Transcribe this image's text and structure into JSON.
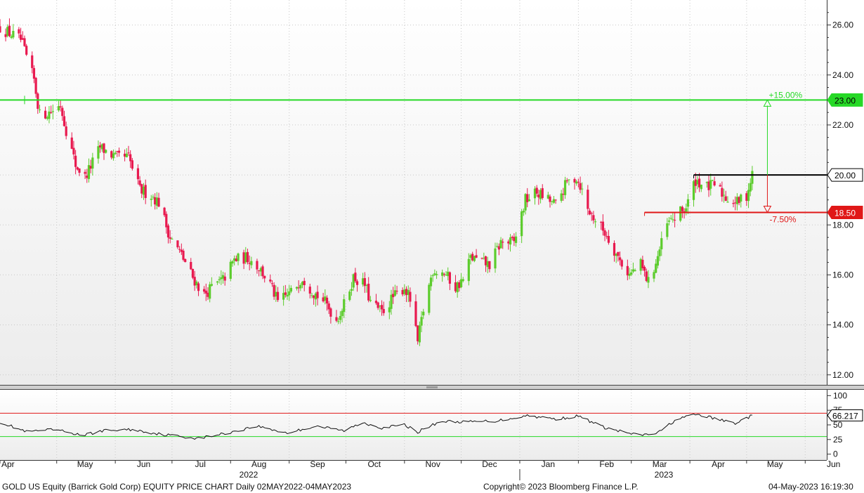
{
  "footer": {
    "left": "GOLD US Equity (Barrick Gold Corp) EQUITY PRICE CHART  Daily 02MAY2022-04MAY2023",
    "center": "Copyright© 2023 Bloomberg Finance L.P.",
    "right": "04-May-2023 16:19:30"
  },
  "colors": {
    "up": "#5ccc2c",
    "down": "#e8194f",
    "green_level": "#26d926",
    "red_level": "#e01818",
    "black_level": "#000000",
    "rsi_line": "#111111"
  },
  "chart_data": [
    {
      "type": "candlestick",
      "name": "price",
      "ylim": [
        11.6,
        27.0
      ],
      "yticks": [
        12,
        14,
        16,
        18,
        20,
        22,
        24,
        26
      ],
      "ytick_labels": [
        "12.00",
        "14.00",
        "16.00",
        "18.00",
        "20.00",
        "22.00",
        "24.00",
        "26.00"
      ],
      "x_months": [
        "Apr",
        "May",
        "Jun",
        "Jul",
        "Aug",
        "Sep",
        "Oct",
        "Nov",
        "Dec",
        "Jan",
        "Feb",
        "Mar",
        "Apr",
        "May",
        "Jun"
      ],
      "x_years": [
        "2022",
        "2023"
      ],
      "grid": true,
      "levels": [
        {
          "value": 23.0,
          "label": "23.00",
          "color": "green"
        },
        {
          "value": 20.0,
          "label": "20.00",
          "color": "black"
        },
        {
          "value": 18.5,
          "label": "18.50",
          "color": "red"
        }
      ],
      "annotations": [
        {
          "text": "+15.00%",
          "from": 20.0,
          "to": 23.0
        },
        {
          "text": "-7.50%",
          "from": 20.0,
          "to": 18.5
        }
      ],
      "anchors": [
        [
          "2022-04-01",
          25.9
        ],
        [
          "2022-04-12",
          25.4
        ],
        [
          "2022-04-19",
          23.8
        ],
        [
          "2022-04-22",
          22.4
        ],
        [
          "2022-04-27",
          22.5
        ],
        [
          "2022-05-03",
          22.8
        ],
        [
          "2022-05-06",
          21.8
        ],
        [
          "2022-05-11",
          20.4
        ],
        [
          "2022-05-16",
          19.9
        ],
        [
          "2022-05-24",
          21.1
        ],
        [
          "2022-06-01",
          20.7
        ],
        [
          "2022-06-08",
          20.7
        ],
        [
          "2022-06-14",
          19.4
        ],
        [
          "2022-06-20",
          19.2
        ],
        [
          "2022-06-24",
          18.9
        ],
        [
          "2022-06-30",
          17.5
        ],
        [
          "2022-07-06",
          16.8
        ],
        [
          "2022-07-12",
          15.9
        ],
        [
          "2022-07-18",
          15.2
        ],
        [
          "2022-07-22",
          15.5
        ],
        [
          "2022-07-28",
          15.8
        ],
        [
          "2022-08-03",
          16.6
        ],
        [
          "2022-08-10",
          16.7
        ],
        [
          "2022-08-16",
          16.3
        ],
        [
          "2022-08-22",
          15.6
        ],
        [
          "2022-08-26",
          14.9
        ],
        [
          "2022-09-02",
          15.3
        ],
        [
          "2022-09-08",
          15.9
        ],
        [
          "2022-09-14",
          15.3
        ],
        [
          "2022-09-20",
          14.9
        ],
        [
          "2022-09-26",
          14.2
        ],
        [
          "2022-09-30",
          14.8
        ],
        [
          "2022-10-05",
          15.9
        ],
        [
          "2022-10-11",
          15.6
        ],
        [
          "2022-10-14",
          14.9
        ],
        [
          "2022-10-20",
          14.5
        ],
        [
          "2022-10-26",
          15.1
        ],
        [
          "2022-11-01",
          15.5
        ],
        [
          "2022-11-04",
          15.0
        ],
        [
          "2022-11-08",
          13.3
        ],
        [
          "2022-11-11",
          14.6
        ],
        [
          "2022-11-16",
          16.2
        ],
        [
          "2022-11-22",
          16.1
        ],
        [
          "2022-11-28",
          15.5
        ],
        [
          "2022-12-02",
          15.8
        ],
        [
          "2022-12-06",
          16.7
        ],
        [
          "2022-12-12",
          16.5
        ],
        [
          "2022-12-16",
          16.4
        ],
        [
          "2022-12-22",
          17.3
        ],
        [
          "2022-12-29",
          17.3
        ],
        [
          "2023-01-04",
          19.0
        ],
        [
          "2023-01-10",
          19.3
        ],
        [
          "2023-01-16",
          19.0
        ],
        [
          "2023-01-20",
          18.8
        ],
        [
          "2023-01-26",
          19.7
        ],
        [
          "2023-01-31",
          19.9
        ],
        [
          "2023-02-02",
          19.6
        ],
        [
          "2023-02-06",
          18.6
        ],
        [
          "2023-02-10",
          18.2
        ],
        [
          "2023-02-16",
          17.6
        ],
        [
          "2023-02-22",
          16.7
        ],
        [
          "2023-02-28",
          16.0
        ],
        [
          "2023-03-06",
          16.4
        ],
        [
          "2023-03-10",
          15.7
        ],
        [
          "2023-03-14",
          16.5
        ],
        [
          "2023-03-20",
          18.0
        ],
        [
          "2023-03-24",
          18.3
        ],
        [
          "2023-03-30",
          18.7
        ],
        [
          "2023-04-04",
          19.8
        ],
        [
          "2023-04-10",
          19.5
        ],
        [
          "2023-04-14",
          19.6
        ],
        [
          "2023-04-20",
          19.1
        ],
        [
          "2023-04-26",
          18.9
        ],
        [
          "2023-05-01",
          19.2
        ],
        [
          "2023-05-04",
          20.0
        ]
      ]
    },
    {
      "type": "line",
      "name": "rsi",
      "ylim": [
        -10,
        110
      ],
      "yticks": [
        0,
        25,
        50,
        75,
        100
      ],
      "ytick_labels": [
        "0",
        "25",
        "50",
        "75",
        "100"
      ],
      "levels": [
        {
          "value": 70,
          "color": "red"
        },
        {
          "value": 30,
          "color": "green"
        }
      ],
      "last_value_label": "66.217",
      "anchors": [
        [
          "2022-04-01",
          55
        ],
        [
          "2022-04-15",
          38
        ],
        [
          "2022-04-30",
          42
        ],
        [
          "2022-05-15",
          32
        ],
        [
          "2022-05-25",
          40
        ],
        [
          "2022-06-10",
          42
        ],
        [
          "2022-06-25",
          34
        ],
        [
          "2022-07-15",
          27
        ],
        [
          "2022-07-30",
          36
        ],
        [
          "2022-08-15",
          48
        ],
        [
          "2022-08-31",
          36
        ],
        [
          "2022-09-15",
          48
        ],
        [
          "2022-09-30",
          40
        ],
        [
          "2022-10-10",
          54
        ],
        [
          "2022-10-20",
          45
        ],
        [
          "2022-11-01",
          50
        ],
        [
          "2022-11-08",
          38
        ],
        [
          "2022-11-20",
          56
        ],
        [
          "2022-12-05",
          55
        ],
        [
          "2022-12-20",
          57
        ],
        [
          "2023-01-05",
          66
        ],
        [
          "2023-01-20",
          60
        ],
        [
          "2023-02-01",
          65
        ],
        [
          "2023-02-15",
          45
        ],
        [
          "2023-03-05",
          32
        ],
        [
          "2023-03-15",
          36
        ],
        [
          "2023-03-25",
          60
        ],
        [
          "2023-04-05",
          68
        ],
        [
          "2023-04-15",
          60
        ],
        [
          "2023-04-25",
          53
        ],
        [
          "2023-05-04",
          66
        ]
      ]
    }
  ]
}
